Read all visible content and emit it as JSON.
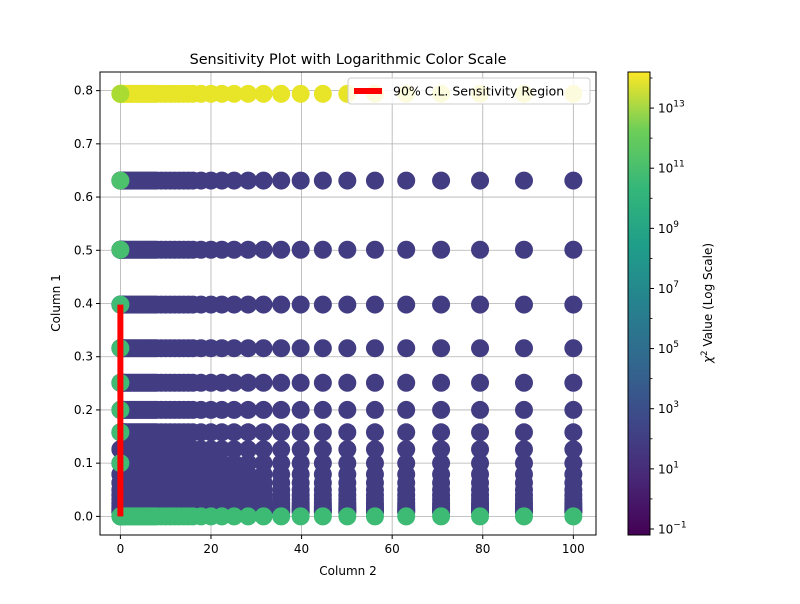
{
  "chart_data": {
    "type": "scatter",
    "title": "Sensitivity Plot with Logarithmic Color Scale",
    "xlabel": "Column 2",
    "ylabel": "Column 1",
    "xlim": [
      -4.5,
      105
    ],
    "ylim": [
      -0.035,
      0.835
    ],
    "xticks": [
      0,
      20,
      40,
      60,
      80,
      100
    ],
    "xtick_labels": [
      "0",
      "20",
      "40",
      "60",
      "80",
      "100"
    ],
    "yticks": [
      0.0,
      0.1,
      0.2,
      0.3,
      0.4,
      0.5,
      0.6,
      0.7,
      0.8
    ],
    "ytick_labels": [
      "0.0",
      "0.1",
      "0.2",
      "0.3",
      "0.4",
      "0.5",
      "0.6",
      "0.7",
      "0.8"
    ],
    "grid": true,
    "legend": {
      "label": "90% C.L. Sensitivity Region",
      "color": "#ff0000",
      "placement": "upper right"
    },
    "colorbar": {
      "label_chi": "χ",
      "label_sup": "2",
      "label_rest": " Value (Log Scale)",
      "scale": "log",
      "cmap": "viridis",
      "range_log10": [
        -1.2,
        14.2
      ],
      "tick_log10": [
        -1,
        1,
        3,
        5,
        7,
        9,
        11,
        13
      ],
      "tick_base": "10",
      "tick_exp": [
        "−1",
        "1",
        "3",
        "5",
        "7",
        "9",
        "11",
        "13"
      ]
    },
    "x_values": [
      0,
      0.01,
      0.02,
      0.05,
      0.1,
      0.2,
      0.3,
      0.5,
      0.7,
      1,
      1.5,
      2,
      2.5,
      3,
      3.5,
      4,
      4.5,
      5,
      5.5,
      6,
      6.5,
      7,
      7.5,
      8,
      9,
      10,
      11,
      12,
      13,
      14,
      15,
      16,
      17.8,
      20,
      22.4,
      25.1,
      28.2,
      31.6,
      35.5,
      39.8,
      44.7,
      50.1,
      56.2,
      63.1,
      70.8,
      79.4,
      89.1,
      100
    ],
    "rows": [
      {
        "y": 0.794,
        "log_chi2": 13.7
      },
      {
        "y": 0.631,
        "log_chi2": 1.6
      },
      {
        "y": 0.501,
        "log_chi2": 1.6
      },
      {
        "y": 0.398,
        "log_chi2": 1.6
      },
      {
        "y": 0.316,
        "log_chi2": 1.6
      },
      {
        "y": 0.251,
        "log_chi2": 1.6
      },
      {
        "y": 0.2,
        "log_chi2": 1.6
      },
      {
        "y": 0.158,
        "log_chi2": 1.6
      },
      {
        "y": 0.126,
        "log_chi2": 1.6
      },
      {
        "y": 0.1,
        "log_chi2": 1.6
      },
      {
        "y": 0.079,
        "log_chi2": 1.6
      },
      {
        "y": 0.063,
        "log_chi2": 1.6
      },
      {
        "y": 0.05,
        "log_chi2": 1.6
      },
      {
        "y": 0.04,
        "log_chi2": 1.6
      },
      {
        "y": 0.032,
        "log_chi2": 1.6
      },
      {
        "y": 0.025,
        "log_chi2": 1.6
      },
      {
        "y": 0.02,
        "log_chi2": 1.6
      },
      {
        "y": 0.016,
        "log_chi2": 1.6
      },
      {
        "y": 0.013,
        "log_chi2": 1.6
      },
      {
        "y": 0.01,
        "log_chi2": 1.6
      },
      {
        "y": 0.008,
        "log_chi2": 1.6
      },
      {
        "y": 0.0,
        "log_chi2": 9.3
      }
    ],
    "left_edge_points": [
      {
        "x": 0,
        "y": 0.794,
        "log_chi2": 12.2
      },
      {
        "x": 0,
        "y": 0.631,
        "log_chi2": 9.8
      },
      {
        "x": 0,
        "y": 0.501,
        "log_chi2": 9.6
      },
      {
        "x": 0,
        "y": 0.398,
        "log_chi2": 9.4
      },
      {
        "x": 0,
        "y": 0.316,
        "log_chi2": 9.4
      },
      {
        "x": 0,
        "y": 0.251,
        "log_chi2": 9.4
      },
      {
        "x": 0,
        "y": 0.2,
        "log_chi2": 9.4
      },
      {
        "x": 0,
        "y": 0.158,
        "log_chi2": 9.4
      },
      {
        "x": 0,
        "y": 0.1,
        "log_chi2": 9.4
      }
    ],
    "sensitivity_line": {
      "x": [
        0,
        0
      ],
      "y": [
        0.0,
        0.398
      ]
    }
  }
}
